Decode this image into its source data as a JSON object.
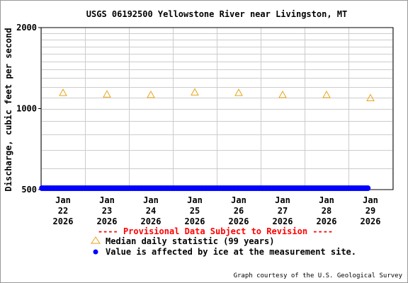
{
  "title": "USGS 06192500 Yellowstone River near Livingston, MT",
  "y_axis_label": "Discharge, cubic feet per second",
  "provisional_notice": "---- Provisional Data Subject to Revision ----",
  "legend": {
    "median_label": "Median daily statistic (99 years)",
    "ice_label": "Value is affected by ice at the measurement site."
  },
  "credit": "Graph courtesy of the U.S. Geological Survey",
  "colors": {
    "median_marker": "#e8a317",
    "ice_marker": "#0000ff",
    "provisional_text": "#ff0000",
    "grid": "#cccccc"
  },
  "chart_data": {
    "type": "scatter",
    "y_scale": "log",
    "ylim": [
      500,
      2000
    ],
    "y_ticks": [
      {
        "value": 500,
        "label": "500"
      },
      {
        "value": 1000,
        "label": "1000"
      },
      {
        "value": 2000,
        "label": "2000"
      }
    ],
    "x_range": [
      0,
      7.55
    ],
    "x_ticks": [
      {
        "x": 0,
        "label": [
          "Jan",
          "22",
          "2026"
        ]
      },
      {
        "x": 1,
        "label": [
          "Jan",
          "23",
          "2026"
        ]
      },
      {
        "x": 2,
        "label": [
          "Jan",
          "24",
          "2026"
        ]
      },
      {
        "x": 3,
        "label": [
          "Jan",
          "25",
          "2026"
        ]
      },
      {
        "x": 4,
        "label": [
          "Jan",
          "26",
          "2026"
        ]
      },
      {
        "x": 5,
        "label": [
          "Jan",
          "27",
          "2026"
        ]
      },
      {
        "x": 6,
        "label": [
          "Jan",
          "28",
          "2026"
        ]
      },
      {
        "x": 7,
        "label": [
          "Jan",
          "29",
          "2026"
        ]
      }
    ],
    "grid": true,
    "series": [
      {
        "name": "Median daily statistic (99 years)",
        "marker": "triangle",
        "points": [
          {
            "x": 0,
            "y": 1145
          },
          {
            "x": 1,
            "y": 1130
          },
          {
            "x": 2,
            "y": 1125
          },
          {
            "x": 3,
            "y": 1150
          },
          {
            "x": 4,
            "y": 1145
          },
          {
            "x": 5,
            "y": 1125
          },
          {
            "x": 6,
            "y": 1125
          },
          {
            "x": 7,
            "y": 1095
          }
        ]
      },
      {
        "name": "Value is affected by ice at the measurement site.",
        "marker": "dot",
        "x_start": -0.48,
        "x_end": 6.95,
        "y": 500
      }
    ]
  }
}
